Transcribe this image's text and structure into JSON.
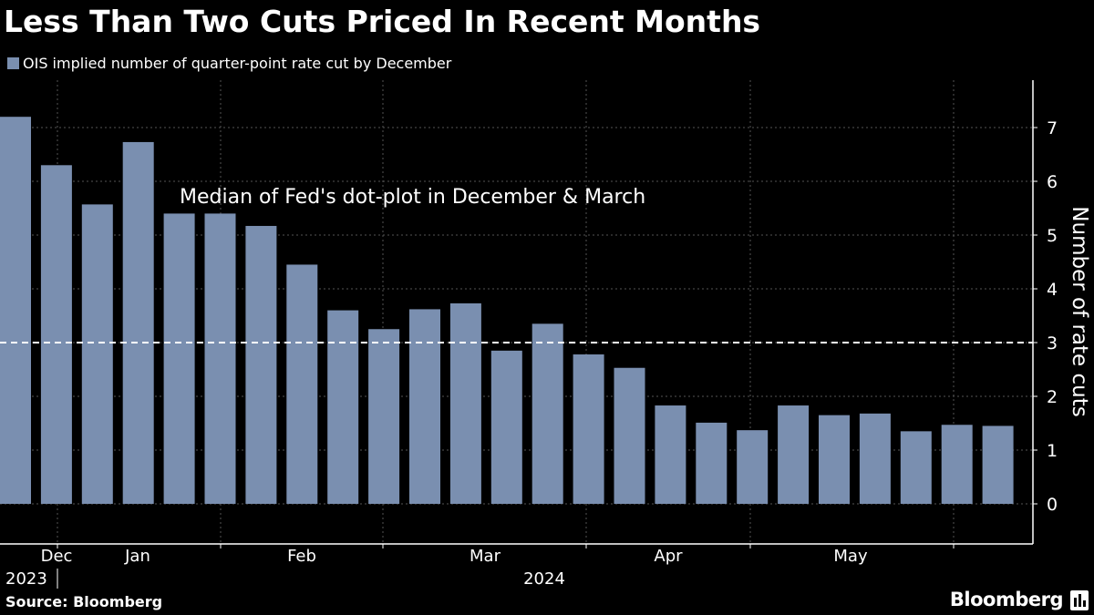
{
  "header": {
    "title": "Less Than Two Cuts Priced In Recent Months"
  },
  "legend": {
    "label": "OIS implied number of quarter-point rate cut by December"
  },
  "footer": {
    "source": "Source: Bloomberg",
    "brand": "Bloomberg"
  },
  "colors": {
    "bar": "#7a8fb0",
    "background": "#000000",
    "grid": "#555555",
    "reference_line": "#ffffff"
  },
  "chart_data": {
    "type": "bar",
    "ylabel": "Number of rate cuts",
    "ylim": [
      -0.75,
      7.85
    ],
    "yticks": [
      0,
      1,
      2,
      3,
      4,
      5,
      6,
      7
    ],
    "grid": true,
    "y_axis_side": "right",
    "legend_position": "top-left",
    "series": [
      {
        "name": "OIS implied number of quarter-point rate cut by December",
        "values": [
          7.2,
          6.3,
          5.57,
          6.73,
          5.4,
          5.4,
          5.17,
          4.45,
          3.6,
          3.25,
          3.62,
          3.73,
          2.85,
          3.35,
          2.78,
          2.53,
          1.83,
          1.51,
          1.37,
          1.83,
          1.65,
          1.68,
          1.35,
          1.47,
          1.45
        ]
      }
    ],
    "x_month_labels": [
      "Dec",
      "Jan",
      "Feb",
      "Mar",
      "Apr",
      "May"
    ],
    "x_year_labels": [
      "2023",
      "2024"
    ],
    "reference_line": {
      "value": 3,
      "style": "dashed",
      "label": "Median of Fed's dot-plot in December & March"
    }
  }
}
